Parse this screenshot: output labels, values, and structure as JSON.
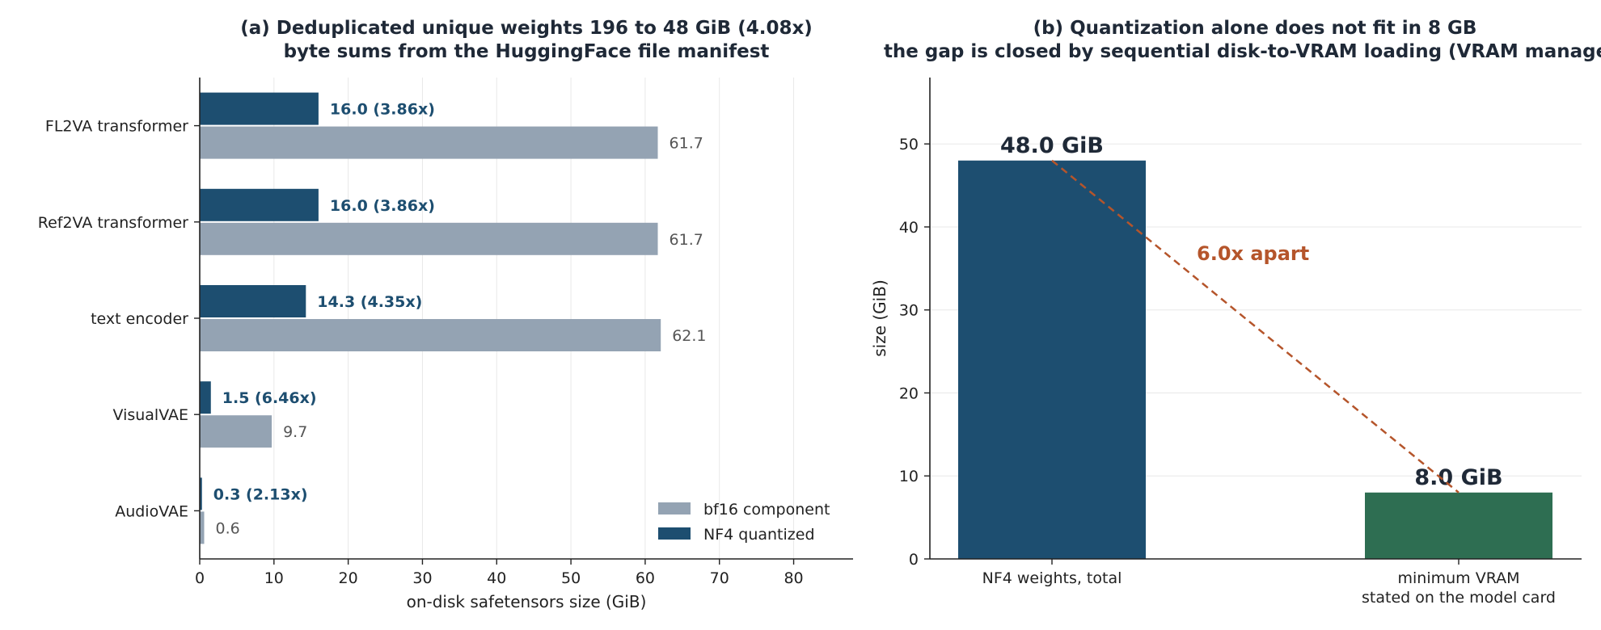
{
  "chart_data": [
    {
      "type": "bar",
      "orientation": "horizontal",
      "title": "(a) Deduplicated unique weights 196 to 48 GiB (4.08x)",
      "subtitle": "byte sums from the HuggingFace file manifest",
      "xlabel": "on-disk safetensors size (GiB)",
      "xlim": [
        0,
        88
      ],
      "xticks": [
        "0",
        "10",
        "20",
        "30",
        "40",
        "50",
        "60",
        "70",
        "80"
      ],
      "grid": "vertical",
      "legend_position": "bottom-right",
      "categories": [
        "FL2VA transformer",
        "Ref2VA transformer",
        "text encoder",
        "VisualVAE",
        "AudioVAE"
      ],
      "series": [
        {
          "name": "bf16 component",
          "color": "#94a3b3",
          "values": [
            61.7,
            61.7,
            62.1,
            9.7,
            0.6
          ],
          "labels": [
            "61.7",
            "61.7",
            "62.1",
            "9.7",
            "0.6"
          ]
        },
        {
          "name": "NF4 quantized",
          "color": "#1d4e70",
          "values": [
            16.0,
            16.0,
            14.3,
            1.5,
            0.3
          ],
          "labels": [
            "16.0  (3.86x)",
            "16.0  (3.86x)",
            "14.3  (4.35x)",
            "1.5  (6.46x)",
            "0.3  (2.13x)"
          ]
        }
      ]
    },
    {
      "type": "bar",
      "title": "(b) Quantization alone does not fit in 8 GB",
      "subtitle": "the gap is closed by sequential disk-to-VRAM loading (VRAM manager)",
      "ylabel": "size (GiB)",
      "ylim": [
        0,
        58
      ],
      "yticks": [
        "0",
        "10",
        "20",
        "30",
        "40",
        "50"
      ],
      "grid": "horizontal",
      "categories": [
        "NF4 weights, total",
        "minimum VRAM\nstated on the model card"
      ],
      "values": [
        48.0,
        8.0
      ],
      "value_labels": [
        "48.0 GiB",
        "8.0 GiB"
      ],
      "colors": [
        "#1d4e70",
        "#2e6e52"
      ],
      "annotation": {
        "text": "6.0x apart",
        "color": "#b5552b"
      }
    }
  ]
}
